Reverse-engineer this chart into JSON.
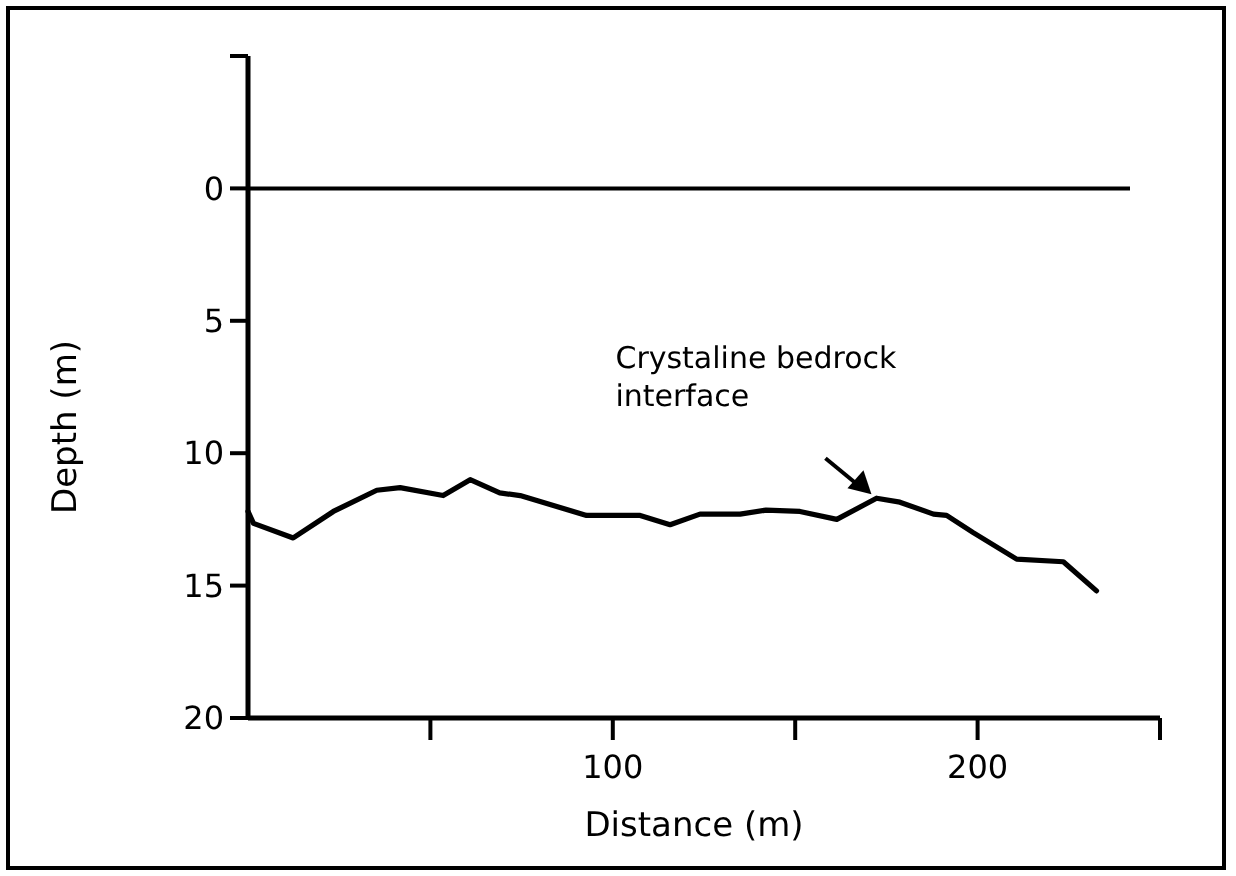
{
  "chart_data": {
    "type": "line",
    "xlabel": "Distance (m)",
    "ylabel": "Depth (m)",
    "xlim": [
      0,
      250
    ],
    "ylim": [
      20,
      -5
    ],
    "xticks": [
      {
        "value": 50,
        "label": null
      },
      100,
      {
        "value": 150,
        "label": null
      },
      200,
      {
        "value": 250,
        "label": null
      }
    ],
    "yticks": [
      {
        "value": -5,
        "label": null
      },
      0,
      5,
      10,
      15,
      20
    ],
    "ref_lines": [
      {
        "axis": "y",
        "value": 0,
        "color": "#000000"
      }
    ],
    "annotations": [
      {
        "text": "Crystaline bedrock interface",
        "x": 172,
        "y": 11.7
      }
    ],
    "grid": false,
    "marker": "none",
    "line_style": "solid",
    "series": [
      {
        "color": "#000000",
        "x": [
          0,
          1.5,
          12.4,
          23.4,
          35.3,
          41.7,
          53.5,
          60.9,
          69,
          74.6,
          92.8,
          107.5,
          115.7,
          123.9,
          134.9,
          142,
          151.3,
          161.4,
          172.3,
          178.7,
          187.9,
          191.5,
          198.8,
          210.7,
          223.5,
          232.6
        ],
        "values": [
          12.2,
          12.65,
          13.2,
          12.2,
          11.4,
          11.3,
          11.6,
          11.0,
          11.5,
          11.6,
          12.35,
          12.35,
          12.7,
          12.3,
          12.3,
          12.15,
          12.2,
          12.5,
          11.7,
          11.85,
          12.3,
          12.35,
          13.0,
          14.0,
          14.1,
          15.2
        ]
      }
    ]
  }
}
